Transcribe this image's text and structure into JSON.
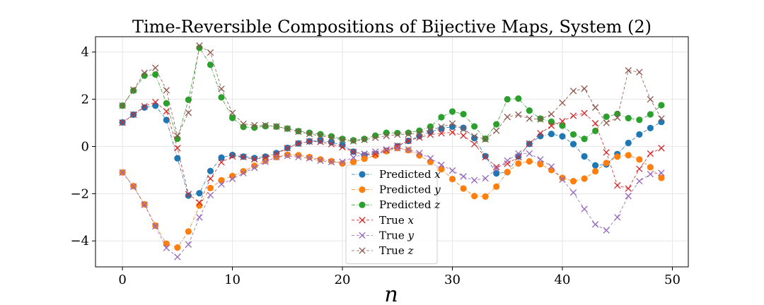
{
  "chart_data": {
    "type": "line",
    "title": "Time-Reversible Compositions of Bijective Maps, System (2)",
    "xlabel": "n",
    "ylabel": "",
    "xlim": [
      -2.45,
      51.45
    ],
    "ylim": [
      -5.1,
      4.65
    ],
    "xticks": [
      0,
      10,
      20,
      30,
      40,
      50
    ],
    "yticks": [
      -4,
      -2,
      0,
      2,
      4
    ],
    "grid": true,
    "legend_position": "lower-center",
    "series": [
      {
        "name": "Predicted x",
        "name_var": "x",
        "name_prefix": "Predicted ",
        "color": "#1f77b4",
        "marker": "circle",
        "linestyle": "dashdot",
        "values": [
          1.02,
          1.35,
          1.65,
          1.73,
          1.12,
          -0.5,
          -2.08,
          -1.98,
          -1.04,
          -0.47,
          -0.36,
          -0.43,
          -0.49,
          -0.43,
          -0.28,
          -0.06,
          0.13,
          0.22,
          0.25,
          0.18,
          0.06,
          -0.22,
          -0.37,
          -0.32,
          -0.18,
          0.01,
          0.24,
          0.44,
          0.62,
          0.76,
          0.84,
          0.79,
          0.35,
          -0.41,
          -1.14,
          -1.09,
          -0.42,
          0.11,
          0.44,
          0.53,
          0.43,
          0.1,
          -0.42,
          -0.8,
          -0.76,
          -0.32,
          0.15,
          0.51,
          0.78,
          1.04
        ]
      },
      {
        "name": "Predicted y",
        "name_var": "y",
        "name_prefix": "Predicted ",
        "color": "#ff7f0e",
        "marker": "circle",
        "linestyle": "dashdot",
        "values": [
          -1.1,
          -1.68,
          -2.45,
          -3.35,
          -4.12,
          -4.28,
          -3.6,
          -2.5,
          -1.76,
          -1.43,
          -1.25,
          -1.05,
          -0.82,
          -0.61,
          -0.45,
          -0.35,
          -0.37,
          -0.45,
          -0.55,
          -0.62,
          -0.72,
          -0.66,
          -0.52,
          -0.38,
          -0.2,
          -0.07,
          -0.16,
          -0.38,
          -0.65,
          -0.96,
          -1.38,
          -1.78,
          -2.1,
          -2.12,
          -1.7,
          -1.08,
          -0.72,
          -0.63,
          -0.75,
          -1.0,
          -1.33,
          -1.47,
          -1.36,
          -1.05,
          -0.7,
          -0.43,
          -0.37,
          -0.55,
          -0.88,
          -1.33
        ]
      },
      {
        "name": "Predicted z",
        "name_var": "z",
        "name_prefix": "Predicted ",
        "color": "#2ca02c",
        "marker": "circle",
        "linestyle": "dashdot",
        "values": [
          1.73,
          2.37,
          3.0,
          3.05,
          1.83,
          0.33,
          1.98,
          4.18,
          3.46,
          2.08,
          1.21,
          0.83,
          0.8,
          0.86,
          0.84,
          0.76,
          0.65,
          0.58,
          0.52,
          0.43,
          0.32,
          0.26,
          0.32,
          0.46,
          0.58,
          0.57,
          0.58,
          0.67,
          0.84,
          1.24,
          1.48,
          1.37,
          0.85,
          0.33,
          0.94,
          2.0,
          2.03,
          1.52,
          1.18,
          1.05,
          0.88,
          0.51,
          0.32,
          0.66,
          1.26,
          1.38,
          1.2,
          1.13,
          1.36,
          1.75
        ]
      },
      {
        "name": "True x",
        "name_var": "x",
        "name_prefix": "True ",
        "color": "#d62728",
        "marker": "x",
        "linestyle": "dashed",
        "values": [
          1.01,
          1.35,
          1.7,
          1.88,
          1.49,
          -0.07,
          -2.02,
          -2.38,
          -1.36,
          -0.67,
          -0.42,
          -0.45,
          -0.54,
          -0.47,
          -0.32,
          -0.07,
          0.12,
          0.21,
          0.2,
          0.1,
          -0.03,
          -0.23,
          -0.32,
          -0.32,
          -0.16,
          0.03,
          0.24,
          0.38,
          0.5,
          0.56,
          0.6,
          0.46,
          0.1,
          -0.45,
          -0.87,
          -0.73,
          -0.45,
          0.12,
          0.56,
          0.88,
          1.07,
          1.3,
          1.41,
          0.98,
          -0.25,
          -1.65,
          -1.78,
          -0.95,
          -0.3,
          -0.07
        ]
      },
      {
        "name": "True y",
        "name_var": "y",
        "name_prefix": "True ",
        "color": "#9467bd",
        "marker": "x",
        "linestyle": "dashed",
        "values": [
          -1.1,
          -1.7,
          -2.47,
          -3.38,
          -4.3,
          -4.68,
          -4.15,
          -3.0,
          -2.06,
          -1.6,
          -1.37,
          -1.13,
          -0.9,
          -0.65,
          -0.45,
          -0.4,
          -0.45,
          -0.5,
          -0.6,
          -0.66,
          -0.65,
          -0.47,
          -0.31,
          -0.22,
          -0.13,
          -0.07,
          -0.13,
          -0.28,
          -0.5,
          -0.78,
          -1.02,
          -1.27,
          -1.43,
          -1.35,
          -0.95,
          -0.6,
          -0.3,
          -0.3,
          -0.55,
          -0.85,
          -1.4,
          -1.95,
          -2.65,
          -3.3,
          -3.55,
          -3.0,
          -2.1,
          -1.47,
          -1.17,
          -1.12
        ]
      },
      {
        "name": "True z",
        "name_var": "z",
        "name_prefix": "True ",
        "color": "#8c564b",
        "marker": "x",
        "linestyle": "dashed",
        "values": [
          1.73,
          2.4,
          3.12,
          3.33,
          2.38,
          0.45,
          1.43,
          4.27,
          3.98,
          2.44,
          1.42,
          0.96,
          0.9,
          0.9,
          0.85,
          0.75,
          0.63,
          0.53,
          0.45,
          0.37,
          0.28,
          0.22,
          0.28,
          0.37,
          0.45,
          0.5,
          0.52,
          0.57,
          0.7,
          0.83,
          0.97,
          0.73,
          0.43,
          0.3,
          0.67,
          1.25,
          1.35,
          1.18,
          1.15,
          1.37,
          1.85,
          2.35,
          2.45,
          1.65,
          1.0,
          1.22,
          3.22,
          3.15,
          2.0,
          1.18
        ]
      }
    ]
  }
}
